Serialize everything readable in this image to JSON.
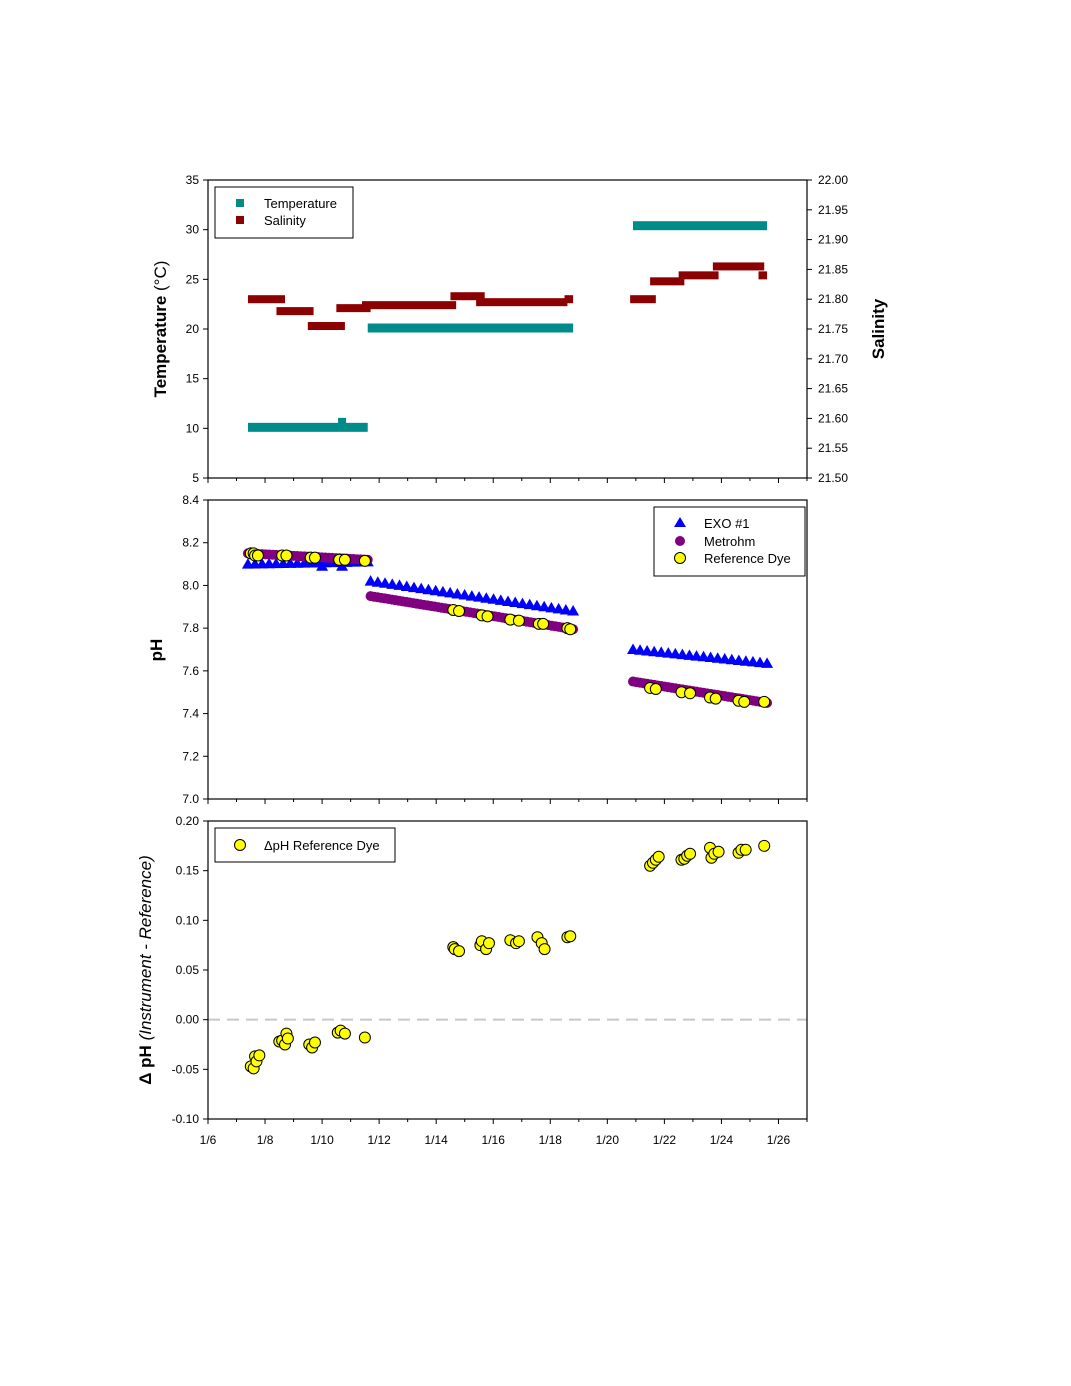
{
  "colors": {
    "temperature": "#008b8b",
    "salinity": "#8b0000",
    "exo": "#0000ff",
    "metrohm": "#800080",
    "dye": "#ffff00",
    "zero_line": "#c8c8c8"
  },
  "x_axis": {
    "ticks": [
      "1/6",
      "1/8",
      "1/10",
      "1/12",
      "1/14",
      "1/16",
      "1/18",
      "1/20",
      "1/22",
      "1/24",
      "1/26"
    ],
    "range_days": [
      6,
      27
    ]
  },
  "chart_data": [
    {
      "type": "scatter",
      "panel": "temperature-salinity",
      "ylabel": "Temperature",
      "ylabel_unit": "(°C)",
      "y2label": "Salinity",
      "ylim": [
        5,
        35
      ],
      "y2lim": [
        21.5,
        22.0
      ],
      "yticks": [
        "5",
        "10",
        "15",
        "20",
        "25",
        "30",
        "35"
      ],
      "y2ticks": [
        "21.50",
        "21.55",
        "21.60",
        "21.65",
        "21.70",
        "21.75",
        "21.80",
        "21.85",
        "21.90",
        "21.95",
        "22.00"
      ],
      "legend": [
        "Temperature",
        "Salinity"
      ],
      "legend_position": "top-left",
      "series": [
        {
          "name": "Temperature",
          "axis": "left",
          "segments": [
            {
              "x": [
                7.4,
                11.6
              ],
              "y": 10.1
            },
            {
              "x": [
                11.6,
                18.8
              ],
              "y": 20.1
            },
            {
              "x": [
                20.9,
                25.6
              ],
              "y": 30.4
            }
          ],
          "spikes": [
            {
              "x": 10.7,
              "y": 10.6
            }
          ]
        },
        {
          "name": "Salinity",
          "axis": "right",
          "segments": [
            {
              "x": [
                7.4,
                8.7
              ],
              "y": 21.8
            },
            {
              "x": [
                8.4,
                9.7
              ],
              "y": 21.78
            },
            {
              "x": [
                9.5,
                10.8
              ],
              "y": 21.755
            },
            {
              "x": [
                10.5,
                11.7
              ],
              "y": 21.785
            },
            {
              "x": [
                11.4,
                14.7
              ],
              "y": 21.79
            },
            {
              "x": [
                14.5,
                15.7
              ],
              "y": 21.805
            },
            {
              "x": [
                15.4,
                18.6
              ],
              "y": 21.795
            },
            {
              "x": [
                18.5,
                18.8
              ],
              "y": 21.8
            },
            {
              "x": [
                20.8,
                21.7
              ],
              "y": 21.8
            },
            {
              "x": [
                21.5,
                22.7
              ],
              "y": 21.83
            },
            {
              "x": [
                22.5,
                23.9
              ],
              "y": 21.84
            },
            {
              "x": [
                23.7,
                25.5
              ],
              "y": 21.855
            },
            {
              "x": [
                25.3,
                25.6
              ],
              "y": 21.84
            }
          ]
        }
      ]
    },
    {
      "type": "scatter",
      "panel": "ph",
      "ylabel": "pH",
      "ylim": [
        7.0,
        8.4
      ],
      "yticks": [
        "7.0",
        "7.2",
        "7.4",
        "7.6",
        "7.8",
        "8.0",
        "8.2",
        "8.4"
      ],
      "legend": [
        "EXO #1",
        "Metrohm",
        "Reference Dye"
      ],
      "legend_position": "top-right",
      "series": [
        {
          "name": "EXO #1",
          "segments": [
            {
              "x0": 7.4,
              "x1": 11.6,
              "y0": 8.1,
              "y1": 8.11
            },
            {
              "x0": 11.7,
              "x1": 18.8,
              "y0": 8.02,
              "y1": 7.88
            },
            {
              "x0": 20.9,
              "x1": 25.6,
              "y0": 7.7,
              "y1": 7.635
            }
          ],
          "dips": [
            {
              "x": 10.0,
              "y": 8.09
            },
            {
              "x": 10.7,
              "y": 8.09
            }
          ]
        },
        {
          "name": "Metrohm",
          "segments": [
            {
              "x0": 7.4,
              "x1": 11.6,
              "y0": 8.15,
              "y1": 8.12
            },
            {
              "x0": 11.7,
              "x1": 18.8,
              "y0": 7.95,
              "y1": 7.795
            },
            {
              "x0": 20.9,
              "x1": 25.6,
              "y0": 7.55,
              "y1": 7.45
            }
          ]
        },
        {
          "name": "Reference Dye",
          "points": [
            [
              7.5,
              8.15
            ],
            [
              7.6,
              8.15
            ],
            [
              7.65,
              8.14
            ],
            [
              7.75,
              8.14
            ],
            [
              8.6,
              8.14
            ],
            [
              8.75,
              8.14
            ],
            [
              9.6,
              8.13
            ],
            [
              9.75,
              8.13
            ],
            [
              10.6,
              8.12
            ],
            [
              10.8,
              8.12
            ],
            [
              11.5,
              8.115
            ],
            [
              14.6,
              7.885
            ],
            [
              14.8,
              7.88
            ],
            [
              15.6,
              7.86
            ],
            [
              15.8,
              7.855
            ],
            [
              16.6,
              7.84
            ],
            [
              16.9,
              7.835
            ],
            [
              17.6,
              7.82
            ],
            [
              17.75,
              7.82
            ],
            [
              18.6,
              7.8
            ],
            [
              18.7,
              7.795
            ],
            [
              21.5,
              7.52
            ],
            [
              21.7,
              7.515
            ],
            [
              22.6,
              7.5
            ],
            [
              22.9,
              7.495
            ],
            [
              23.6,
              7.475
            ],
            [
              23.8,
              7.47
            ],
            [
              24.6,
              7.46
            ],
            [
              24.8,
              7.455
            ],
            [
              25.5,
              7.455
            ]
          ]
        }
      ]
    },
    {
      "type": "scatter",
      "panel": "delta-ph",
      "ylabel": "Δ pH",
      "ylabel_note": "(Instrument - Reference)",
      "ylim": [
        -0.1,
        0.2
      ],
      "yticks": [
        "-0.10",
        "-0.05",
        "0.00",
        "0.05",
        "0.10",
        "0.15",
        "0.20"
      ],
      "reference_line": 0,
      "legend": [
        "ΔpH Reference Dye"
      ],
      "legend_position": "top-left",
      "series": [
        {
          "name": "ΔpH Reference Dye",
          "points": [
            [
              7.5,
              -0.047
            ],
            [
              7.6,
              -0.049
            ],
            [
              7.65,
              -0.037
            ],
            [
              7.7,
              -0.042
            ],
            [
              7.8,
              -0.036
            ],
            [
              8.5,
              -0.022
            ],
            [
              8.6,
              -0.021
            ],
            [
              8.7,
              -0.025
            ],
            [
              8.75,
              -0.014
            ],
            [
              8.8,
              -0.019
            ],
            [
              9.55,
              -0.025
            ],
            [
              9.65,
              -0.028
            ],
            [
              9.75,
              -0.023
            ],
            [
              10.55,
              -0.013
            ],
            [
              10.65,
              -0.011
            ],
            [
              10.8,
              -0.014
            ],
            [
              11.5,
              -0.018
            ],
            [
              14.6,
              0.073
            ],
            [
              14.65,
              0.071
            ],
            [
              14.8,
              0.069
            ],
            [
              15.55,
              0.075
            ],
            [
              15.6,
              0.079
            ],
            [
              15.75,
              0.071
            ],
            [
              15.85,
              0.077
            ],
            [
              16.6,
              0.08
            ],
            [
              16.8,
              0.077
            ],
            [
              16.9,
              0.079
            ],
            [
              17.55,
              0.083
            ],
            [
              17.7,
              0.077
            ],
            [
              17.8,
              0.071
            ],
            [
              18.6,
              0.083
            ],
            [
              18.7,
              0.084
            ],
            [
              21.5,
              0.155
            ],
            [
              21.6,
              0.158
            ],
            [
              21.7,
              0.161
            ],
            [
              21.8,
              0.164
            ],
            [
              22.6,
              0.161
            ],
            [
              22.7,
              0.162
            ],
            [
              22.8,
              0.165
            ],
            [
              22.9,
              0.167
            ],
            [
              23.6,
              0.173
            ],
            [
              23.65,
              0.163
            ],
            [
              23.75,
              0.167
            ],
            [
              23.9,
              0.169
            ],
            [
              24.6,
              0.168
            ],
            [
              24.7,
              0.171
            ],
            [
              24.85,
              0.171
            ],
            [
              25.5,
              0.175
            ]
          ]
        }
      ]
    }
  ]
}
